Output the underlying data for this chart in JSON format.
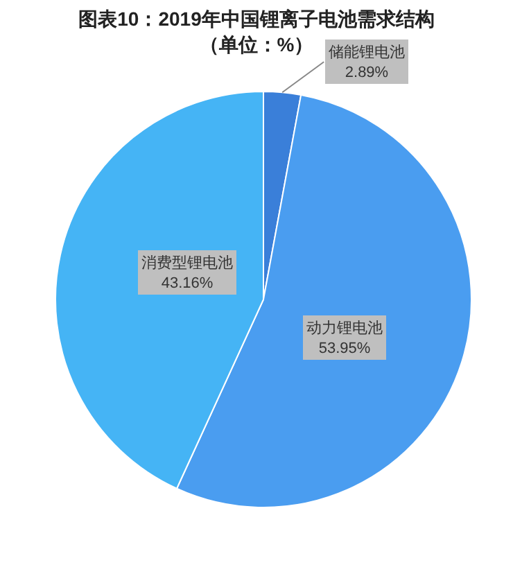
{
  "chart_data": {
    "type": "pie",
    "title": "图表10：2019年中国锂离子电池需求结构",
    "subtitle": "（单位：%）",
    "categories": [
      "储能锂电池",
      "动力锂电池",
      "消费型锂电池"
    ],
    "values": [
      2.89,
      53.95,
      43.16
    ],
    "value_labels": [
      "2.89%",
      "53.95%",
      "43.16%"
    ],
    "colors": [
      "#3a7fd9",
      "#4a9df0",
      "#45b4f5"
    ],
    "legend": false
  }
}
